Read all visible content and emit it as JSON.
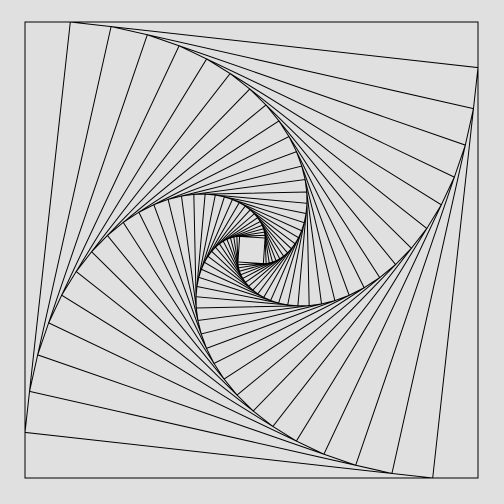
{
  "colors": {
    "background": "#e0e0e0",
    "stroke": "#000000"
  },
  "pattern": {
    "name": "",
    "type": "nested-rotating-squares",
    "square_count": 30,
    "twist_fraction": 0.1
  }
}
